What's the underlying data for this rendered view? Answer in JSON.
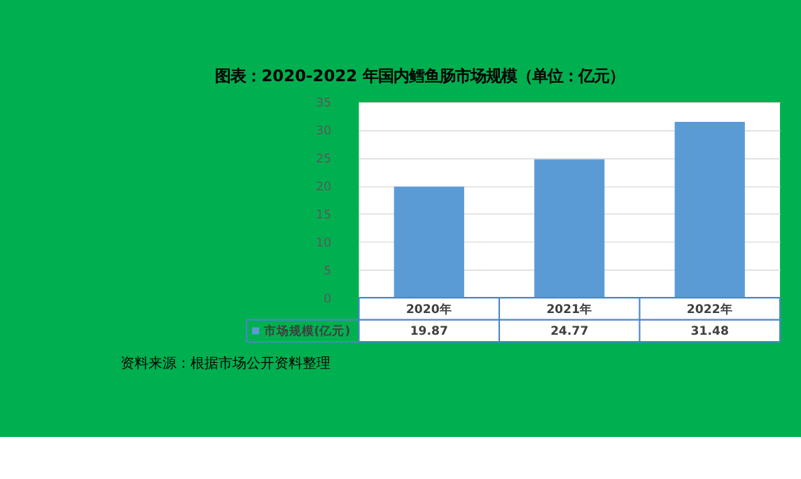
{
  "chart_data": {
    "type": "bar",
    "title": "图表：2020-2022 年国内鳕鱼肠市场规模（单位：亿元）",
    "categories": [
      "2020年",
      "2021年",
      "2022年"
    ],
    "series": [
      {
        "name": "市场规模(亿元)",
        "color": "#5b9bd5",
        "values": [
          19.87,
          24.77,
          31.48
        ]
      }
    ],
    "ylim": [
      0,
      35
    ],
    "yticks": [
      0,
      5,
      10,
      15,
      20,
      25,
      30,
      35
    ],
    "grid": "y",
    "data_labels": true,
    "legend": "bottom",
    "annotations": [
      "资料来源：根据市场公开资料整理"
    ]
  }
}
